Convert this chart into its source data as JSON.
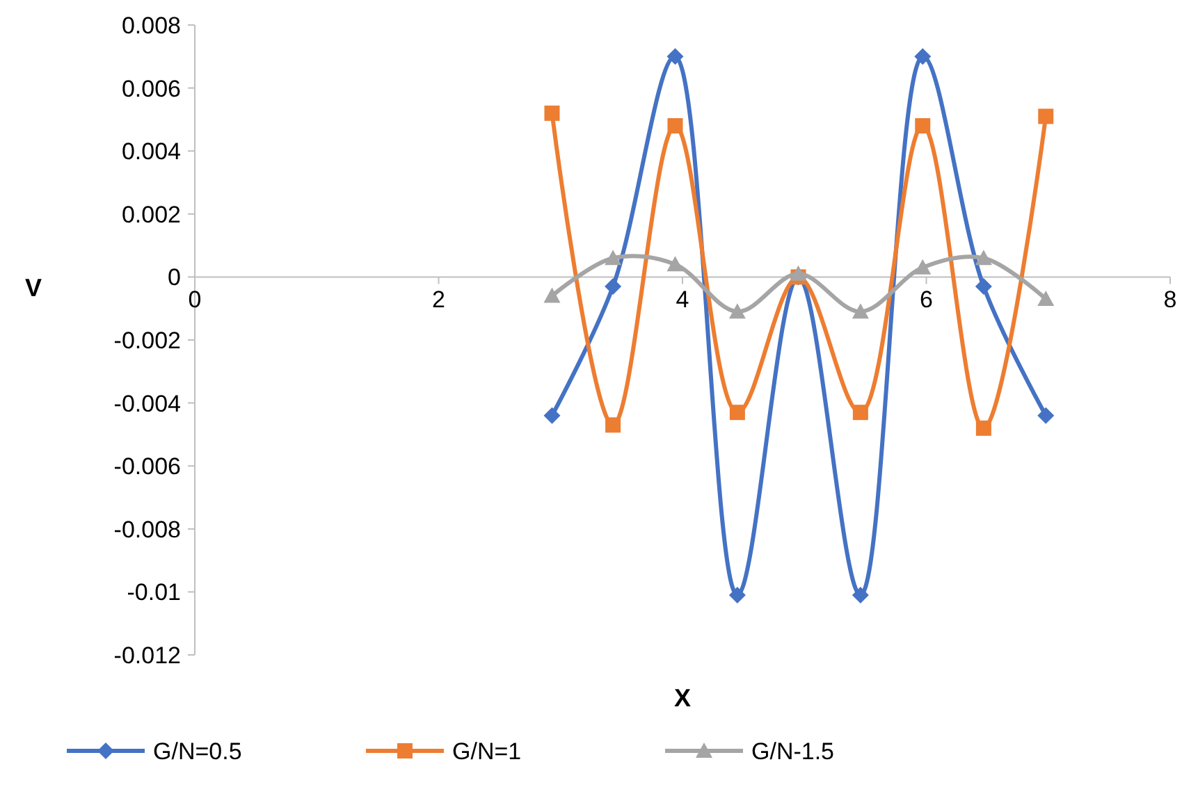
{
  "chart_data": {
    "type": "line",
    "xlabel": "X",
    "ylabel": "V",
    "x": [
      2.93,
      3.43,
      3.94,
      4.45,
      4.95,
      5.46,
      5.97,
      6.47,
      6.98
    ],
    "xlim": [
      0,
      8
    ],
    "xticks": [
      0,
      2,
      4,
      6,
      8
    ],
    "ylim": [
      -0.012,
      0.008
    ],
    "yticks": [
      -0.012,
      -0.01,
      -0.008,
      -0.006,
      -0.004,
      -0.002,
      0,
      0.002,
      0.004,
      0.006,
      0.008
    ],
    "grid": false,
    "legend": "bottom",
    "series": [
      {
        "name": "G/N=0.5",
        "color": "#4472c4",
        "marker": "diamond",
        "values": [
          -0.0044,
          -0.0003,
          0.007,
          -0.0101,
          0,
          -0.0101,
          0.007,
          -0.0003,
          -0.0044
        ]
      },
      {
        "name": "G/N=1",
        "color": "#ed7d31",
        "marker": "square",
        "values": [
          0.0052,
          -0.0047,
          0.0048,
          -0.0043,
          0,
          -0.0043,
          0.0048,
          -0.0048,
          0.0051
        ]
      },
      {
        "name": "G/N-1.5",
        "color": "#a5a5a5",
        "marker": "triangle",
        "values": [
          -0.0006,
          0.0006,
          0.0004,
          -0.0011,
          0.0001,
          -0.0011,
          0.0003,
          0.0006,
          -0.0007
        ]
      }
    ]
  }
}
